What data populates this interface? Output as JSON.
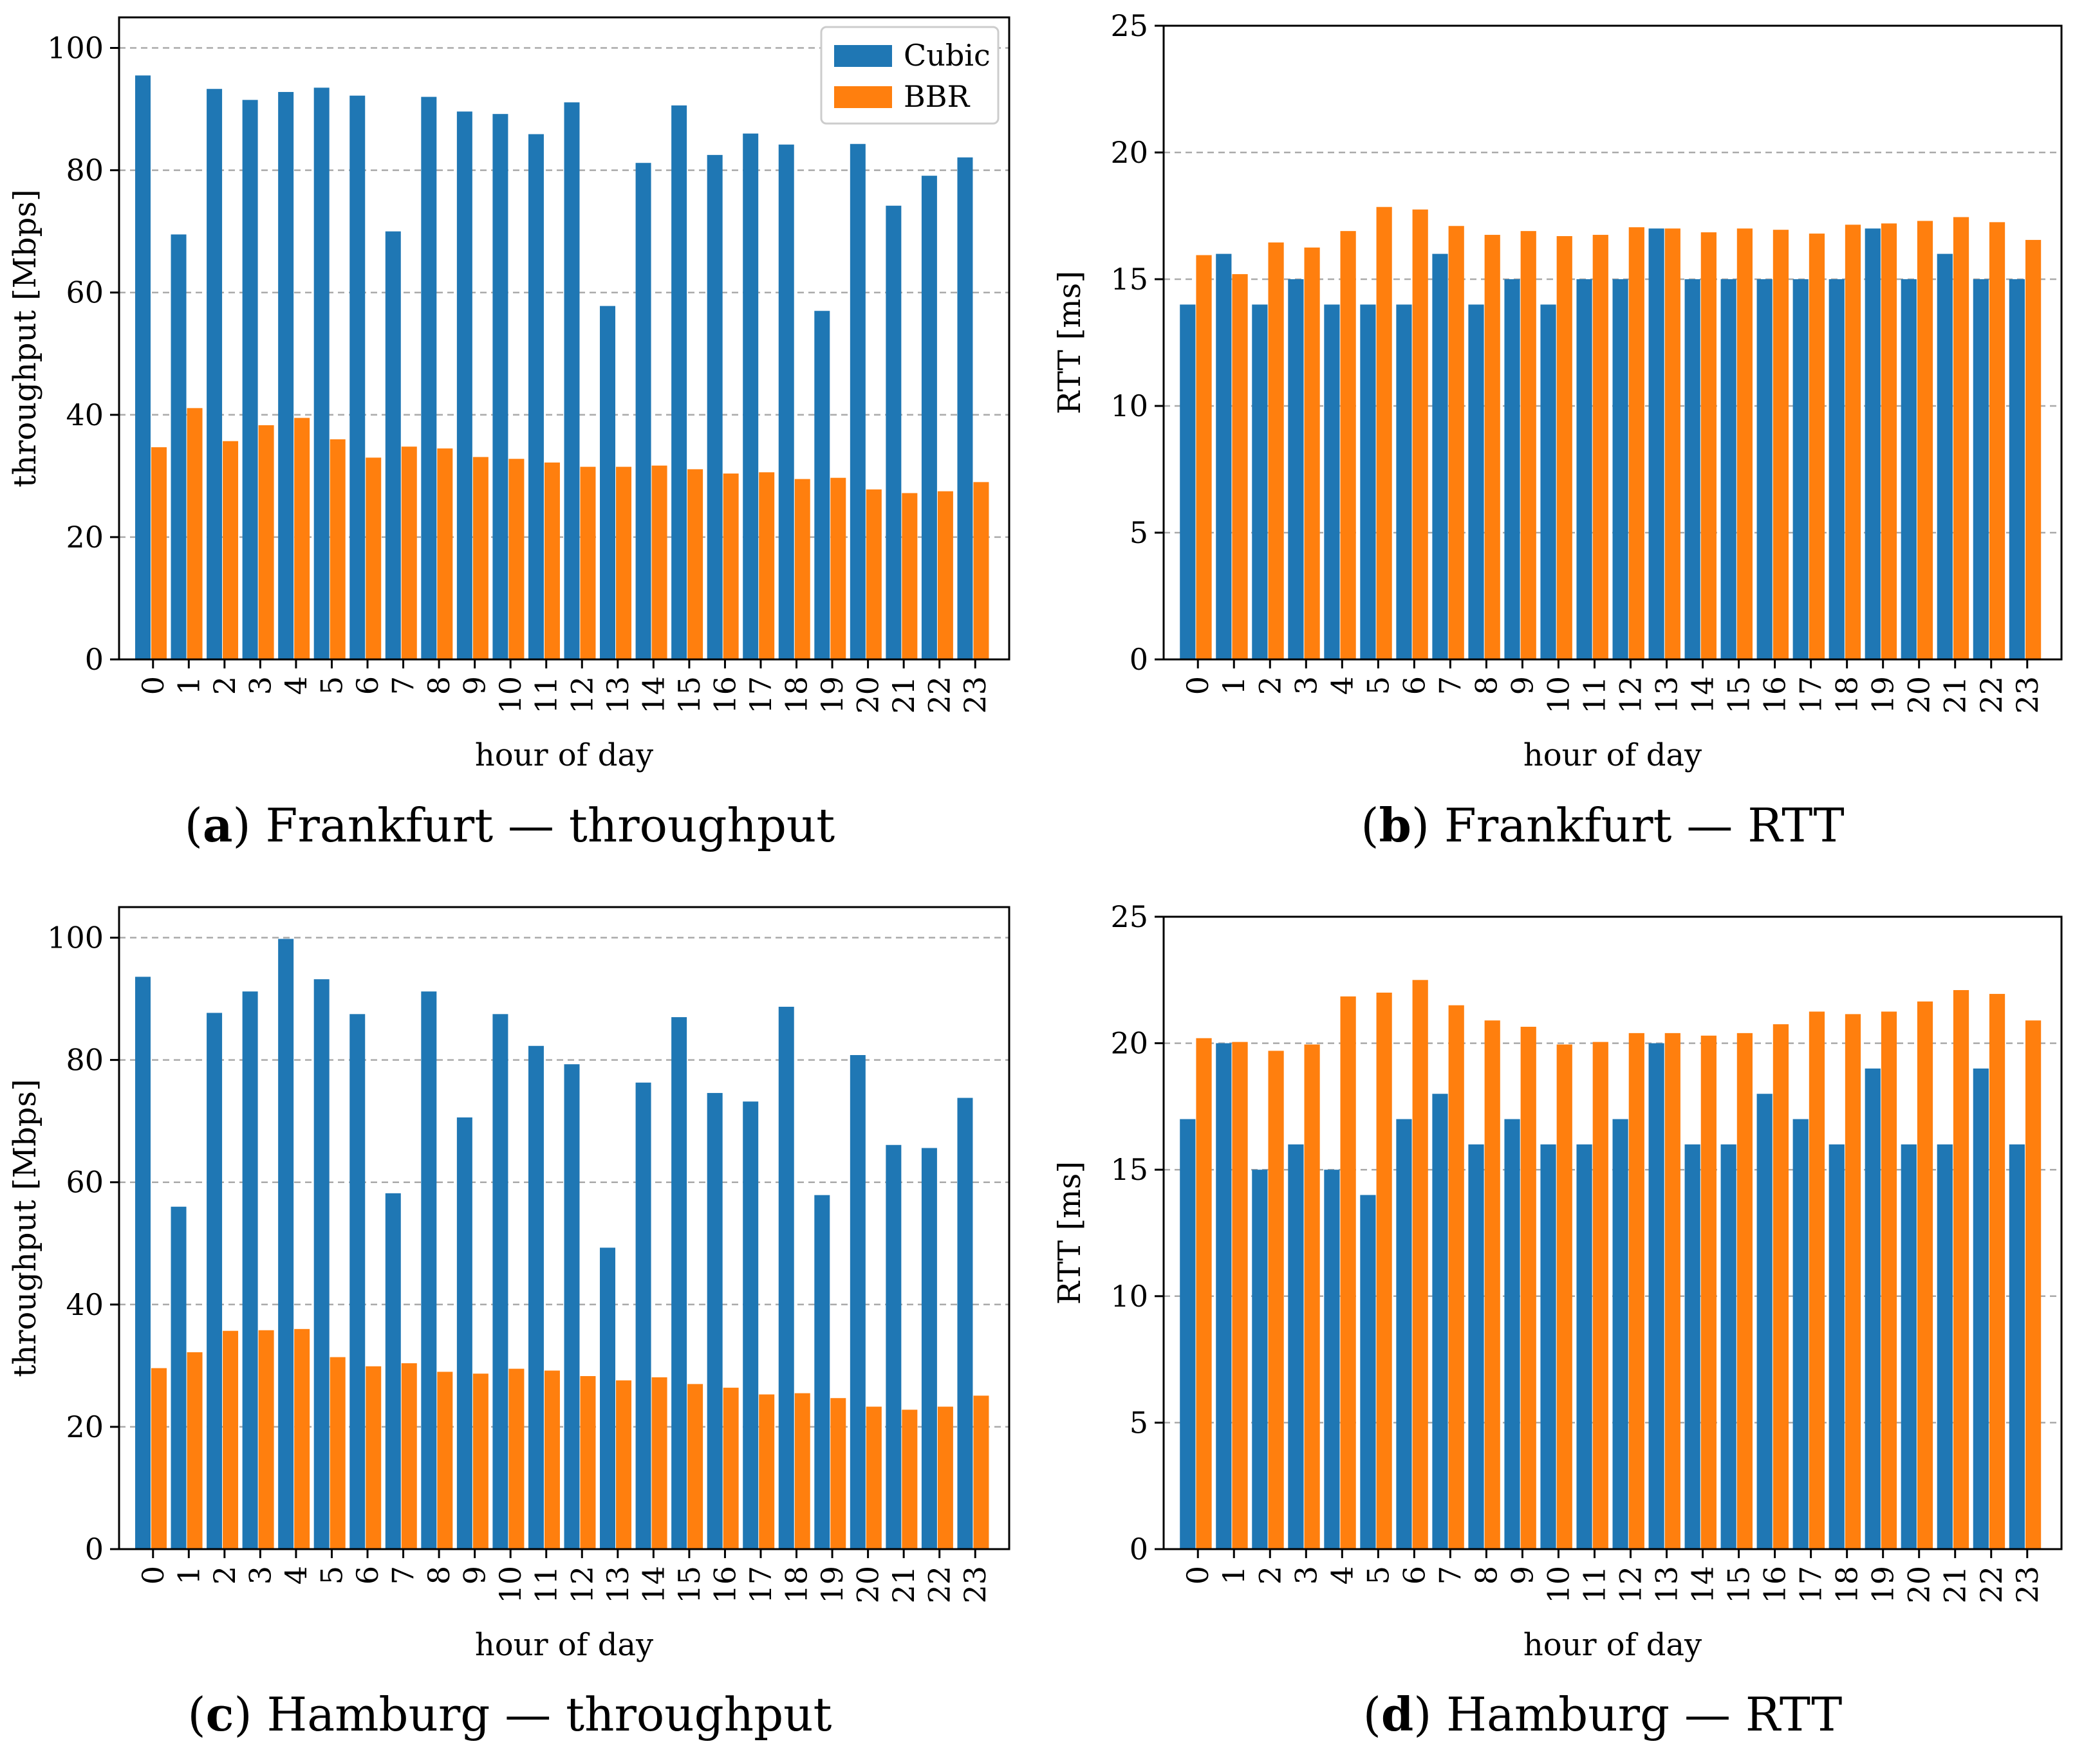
{
  "figure": {
    "legend": {
      "cubic_label": "Cubic",
      "bbr_label": "BBR"
    },
    "colors": {
      "cubic": "#1f77b4",
      "bbr": "#ff7f0e",
      "grid": "#aaaaaa"
    }
  },
  "chart_data": [
    {
      "id": "a",
      "type": "bar",
      "caption": {
        "letter": "a",
        "open": "(",
        "close": ")",
        "text": "Frankfurt — throughput"
      },
      "xlabel": "hour of day",
      "ylabel": "throughput [Mbps]",
      "ylim": [
        0,
        105
      ],
      "yticks": [
        0,
        20,
        40,
        60,
        80,
        100
      ],
      "grid_y": [
        20,
        40,
        60,
        80,
        100
      ],
      "legend": true,
      "categories": [
        "0",
        "1",
        "2",
        "3",
        "4",
        "5",
        "6",
        "7",
        "8",
        "9",
        "10",
        "11",
        "12",
        "13",
        "14",
        "15",
        "16",
        "17",
        "18",
        "19",
        "20",
        "21",
        "22",
        "23"
      ],
      "series": [
        {
          "name": "Cubic",
          "values": [
            95.5,
            69.5,
            93.3,
            91.5,
            92.8,
            93.5,
            92.2,
            70.0,
            92.0,
            89.6,
            89.2,
            85.9,
            91.1,
            57.8,
            81.2,
            90.6,
            82.5,
            86.0,
            84.2,
            57.0,
            84.3,
            74.2,
            79.1,
            82.1
          ]
        },
        {
          "name": "BBR",
          "values": [
            34.7,
            41.1,
            35.7,
            38.3,
            39.5,
            36.0,
            33.0,
            34.8,
            34.5,
            33.1,
            32.8,
            32.2,
            31.5,
            31.5,
            31.7,
            31.1,
            30.4,
            30.6,
            29.5,
            29.7,
            27.8,
            27.2,
            27.5,
            29.0
          ]
        }
      ]
    },
    {
      "id": "b",
      "type": "bar",
      "caption": {
        "letter": "b",
        "open": "(",
        "close": ")",
        "text": "Frankfurt — RTT"
      },
      "xlabel": "hour of day",
      "ylabel": "RTT [ms]",
      "ylim": [
        0,
        25
      ],
      "yticks": [
        0,
        5,
        10,
        15,
        20,
        25
      ],
      "grid_y": [
        5,
        10,
        15,
        20
      ],
      "legend": false,
      "categories": [
        "0",
        "1",
        "2",
        "3",
        "4",
        "5",
        "6",
        "7",
        "8",
        "9",
        "10",
        "11",
        "12",
        "13",
        "14",
        "15",
        "16",
        "17",
        "18",
        "19",
        "20",
        "21",
        "22",
        "23"
      ],
      "series": [
        {
          "name": "Cubic",
          "values": [
            14,
            16,
            14,
            15,
            14,
            14,
            14,
            16,
            14,
            15,
            14,
            15,
            15,
            17,
            15,
            15,
            15,
            15,
            15,
            17,
            15,
            16,
            15,
            15
          ]
        },
        {
          "name": "BBR",
          "values": [
            15.95,
            15.2,
            16.45,
            16.25,
            16.9,
            17.85,
            17.75,
            17.1,
            16.75,
            16.9,
            16.7,
            16.75,
            17.05,
            17.0,
            16.85,
            17.0,
            16.95,
            16.8,
            17.15,
            17.2,
            17.3,
            17.45,
            17.25,
            16.55
          ]
        }
      ]
    },
    {
      "id": "c",
      "type": "bar",
      "caption": {
        "letter": "c",
        "open": "(",
        "close": ")",
        "text": "Hamburg — throughput"
      },
      "xlabel": "hour of day",
      "ylabel": "throughput [Mbps]",
      "ylim": [
        0,
        105
      ],
      "yticks": [
        0,
        20,
        40,
        60,
        80,
        100
      ],
      "grid_y": [
        20,
        40,
        60,
        80,
        100
      ],
      "legend": false,
      "categories": [
        "0",
        "1",
        "2",
        "3",
        "4",
        "5",
        "6",
        "7",
        "8",
        "9",
        "10",
        "11",
        "12",
        "13",
        "14",
        "15",
        "16",
        "17",
        "18",
        "19",
        "20",
        "21",
        "22",
        "23"
      ],
      "series": [
        {
          "name": "Cubic",
          "values": [
            93.6,
            56.0,
            87.7,
            91.2,
            99.8,
            93.2,
            87.5,
            58.2,
            91.2,
            70.6,
            87.5,
            82.3,
            79.3,
            49.3,
            76.3,
            87.0,
            74.6,
            73.2,
            88.7,
            57.9,
            80.8,
            66.1,
            65.6,
            73.8
          ]
        },
        {
          "name": "BBR",
          "values": [
            29.6,
            32.2,
            35.7,
            35.8,
            36.0,
            31.4,
            29.9,
            30.4,
            29.0,
            28.7,
            29.5,
            29.2,
            28.3,
            27.6,
            28.1,
            27.0,
            26.4,
            25.3,
            25.5,
            24.7,
            23.3,
            22.8,
            23.3,
            25.1
          ]
        }
      ]
    },
    {
      "id": "d",
      "type": "bar",
      "caption": {
        "letter": "d",
        "open": "(",
        "close": ")",
        "text": "Hamburg — RTT"
      },
      "xlabel": "hour of day",
      "ylabel": "RTT [ms]",
      "ylim": [
        0,
        25
      ],
      "yticks": [
        0,
        5,
        10,
        15,
        20,
        25
      ],
      "grid_y": [
        5,
        10,
        15,
        20
      ],
      "legend": false,
      "categories": [
        "0",
        "1",
        "2",
        "3",
        "4",
        "5",
        "6",
        "7",
        "8",
        "9",
        "10",
        "11",
        "12",
        "13",
        "14",
        "15",
        "16",
        "17",
        "18",
        "19",
        "20",
        "21",
        "22",
        "23"
      ],
      "series": [
        {
          "name": "Cubic",
          "values": [
            17,
            20,
            15,
            16,
            15,
            14,
            17,
            18,
            16,
            17,
            16,
            16,
            17,
            20,
            16,
            16,
            18,
            17,
            16,
            19,
            16,
            16,
            19,
            16
          ]
        },
        {
          "name": "BBR",
          "values": [
            20.2,
            20.05,
            19.7,
            19.95,
            21.85,
            22.0,
            22.5,
            21.5,
            20.9,
            20.65,
            19.95,
            20.05,
            20.4,
            20.4,
            20.3,
            20.4,
            20.75,
            21.25,
            21.15,
            21.25,
            21.65,
            22.1,
            21.95,
            20.9
          ]
        }
      ]
    }
  ]
}
